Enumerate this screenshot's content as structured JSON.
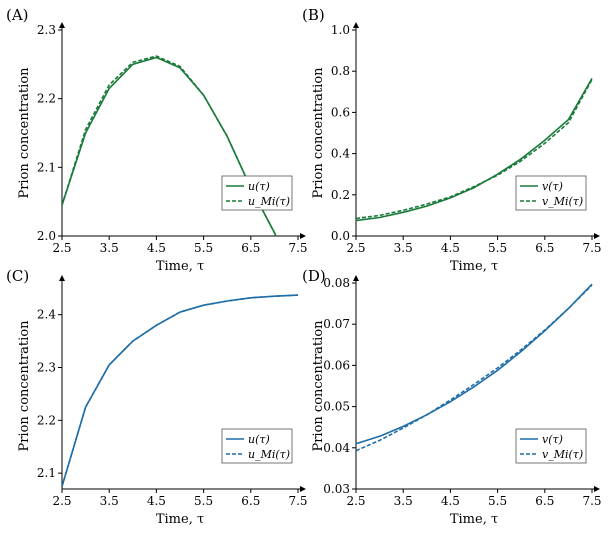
{
  "colors": {
    "green": "#1a7a3a",
    "blue": "#1f6ea8",
    "axis": "#000000"
  },
  "chart_data": [
    {
      "panel_label": "(A)",
      "type": "line",
      "xlabel": "Time, τ",
      "ylabel": "Prion concentration",
      "xlim": [
        2.5,
        7.5
      ],
      "ylim": [
        2.0,
        2.3
      ],
      "xticks": [
        "2.5",
        "3.5",
        "4.5",
        "5.5",
        "6.5",
        "7.5"
      ],
      "yticks": [
        "2.0",
        "2.1",
        "2.2",
        "2.3"
      ],
      "legend_position": "lower-right",
      "color": "#1a7a3a",
      "series": [
        {
          "name": "u(τ)",
          "style": "solid",
          "x": [
            2.5,
            3.0,
            3.5,
            4.0,
            4.5,
            5.0,
            5.5,
            6.0,
            6.5,
            7.0,
            7.1
          ],
          "y": [
            2.045,
            2.15,
            2.215,
            2.25,
            2.26,
            2.245,
            2.205,
            2.145,
            2.07,
            2.005,
            1.99
          ]
        },
        {
          "name": "u_Mi(τ)",
          "style": "dashed",
          "x": [
            2.5,
            3.0,
            3.5,
            4.0,
            4.5,
            5.0,
            5.5,
            6.0,
            6.5,
            7.0,
            7.1
          ],
          "y": [
            2.045,
            2.155,
            2.22,
            2.253,
            2.262,
            2.247,
            2.205,
            2.145,
            2.07,
            2.005,
            1.99
          ]
        }
      ]
    },
    {
      "panel_label": "(B)",
      "type": "line",
      "xlabel": "Time, τ",
      "ylabel": "Prion concentration",
      "xlim": [
        2.5,
        7.5
      ],
      "ylim": [
        0.0,
        1.0
      ],
      "xticks": [
        "2.5",
        "3.5",
        "4.5",
        "5.5",
        "6.5",
        "7.5"
      ],
      "yticks": [
        "0.0",
        "0.2",
        "0.4",
        "0.6",
        "0.8",
        "1.0"
      ],
      "legend_position": "lower-right",
      "color": "#1a7a3a",
      "series": [
        {
          "name": "v(τ)",
          "style": "solid",
          "x": [
            2.5,
            3.0,
            3.5,
            4.0,
            4.5,
            5.0,
            5.5,
            6.0,
            6.5,
            7.0,
            7.5
          ],
          "y": [
            0.075,
            0.09,
            0.115,
            0.145,
            0.185,
            0.235,
            0.3,
            0.375,
            0.465,
            0.565,
            0.765
          ]
        },
        {
          "name": "v_Mi(τ)",
          "style": "dashed",
          "x": [
            2.5,
            3.0,
            3.5,
            4.0,
            4.5,
            5.0,
            5.5,
            6.0,
            6.5,
            7.0,
            7.5
          ],
          "y": [
            0.085,
            0.1,
            0.125,
            0.155,
            0.19,
            0.24,
            0.295,
            0.365,
            0.45,
            0.55,
            0.76
          ]
        }
      ]
    },
    {
      "panel_label": "(C)",
      "type": "line",
      "xlabel": "Time, τ",
      "ylabel": "Prion concentration",
      "xlim": [
        2.5,
        7.5
      ],
      "ylim": [
        2.07,
        2.46
      ],
      "xticks": [
        "2.5",
        "3.5",
        "4.5",
        "5.5",
        "6.5",
        "7.5"
      ],
      "yticks": [
        "2.1",
        "2.2",
        "2.3",
        "2.4"
      ],
      "legend_position": "lower-right",
      "color": "#1f6ea8",
      "series": [
        {
          "name": "u(τ)",
          "style": "solid",
          "x": [
            2.5,
            3.0,
            3.5,
            4.0,
            4.5,
            5.0,
            5.5,
            6.0,
            6.5,
            7.0,
            7.5
          ],
          "y": [
            2.075,
            2.225,
            2.305,
            2.35,
            2.38,
            2.405,
            2.418,
            2.426,
            2.432,
            2.435,
            2.437
          ]
        },
        {
          "name": "u_Mi(τ)",
          "style": "dashed",
          "x": [
            2.5,
            3.0,
            3.5,
            4.0,
            4.5,
            5.0,
            5.5,
            6.0,
            6.5,
            7.0,
            7.5
          ],
          "y": [
            2.075,
            2.225,
            2.305,
            2.35,
            2.38,
            2.405,
            2.418,
            2.426,
            2.432,
            2.435,
            2.437
          ]
        }
      ]
    },
    {
      "panel_label": "(D)",
      "type": "line",
      "xlabel": "Time, τ",
      "ylabel": "Prion concentration",
      "xlim": [
        2.5,
        7.5
      ],
      "ylim": [
        0.03,
        0.08
      ],
      "xticks": [
        "2.5",
        "3.5",
        "4.5",
        "5.5",
        "6.5",
        "7.5"
      ],
      "yticks": [
        "0.03",
        "0.04",
        "0.05",
        "0.06",
        "0.07",
        "0.08"
      ],
      "legend_position": "lower-right",
      "color": "#1f6ea8",
      "series": [
        {
          "name": "v(τ)",
          "style": "solid",
          "x": [
            2.5,
            3.0,
            3.5,
            4.0,
            4.5,
            5.0,
            5.5,
            6.0,
            6.5,
            7.0,
            7.5
          ],
          "y": [
            0.041,
            0.0428,
            0.0452,
            0.048,
            0.0512,
            0.0548,
            0.0588,
            0.0634,
            0.0684,
            0.0738,
            0.0797
          ]
        },
        {
          "name": "v_Mi(τ)",
          "style": "dashed",
          "x": [
            2.5,
            3.0,
            3.5,
            4.0,
            4.5,
            5.0,
            5.5,
            6.0,
            6.5,
            7.0,
            7.5
          ],
          "y": [
            0.0393,
            0.0418,
            0.0448,
            0.048,
            0.0516,
            0.0554,
            0.0594,
            0.0638,
            0.0686,
            0.0738,
            0.0795
          ]
        }
      ]
    }
  ]
}
